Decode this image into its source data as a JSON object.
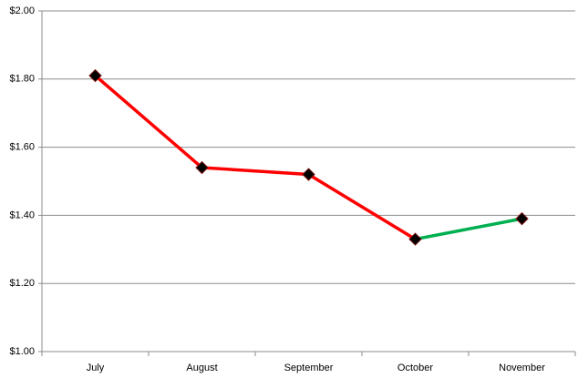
{
  "chart_data": {
    "type": "line",
    "categories": [
      "July",
      "August",
      "September",
      "October",
      "November"
    ],
    "values": [
      1.81,
      1.54,
      1.52,
      1.33,
      1.39
    ],
    "decrease_color": "#ff0000",
    "increase_color": "#00b050",
    "marker_color": "#000000",
    "ylim": [
      1,
      2
    ],
    "yticks": [
      {
        "value": 1,
        "label": "$1.00"
      },
      {
        "value": 1.2,
        "label": "$1.20"
      },
      {
        "value": 1.4,
        "label": "$1.40"
      },
      {
        "value": 1.6,
        "label": "$1.60"
      },
      {
        "value": 1.8,
        "label": "$1.80"
      },
      {
        "value": 2,
        "label": "$2.00"
      }
    ],
    "grid": true
  }
}
